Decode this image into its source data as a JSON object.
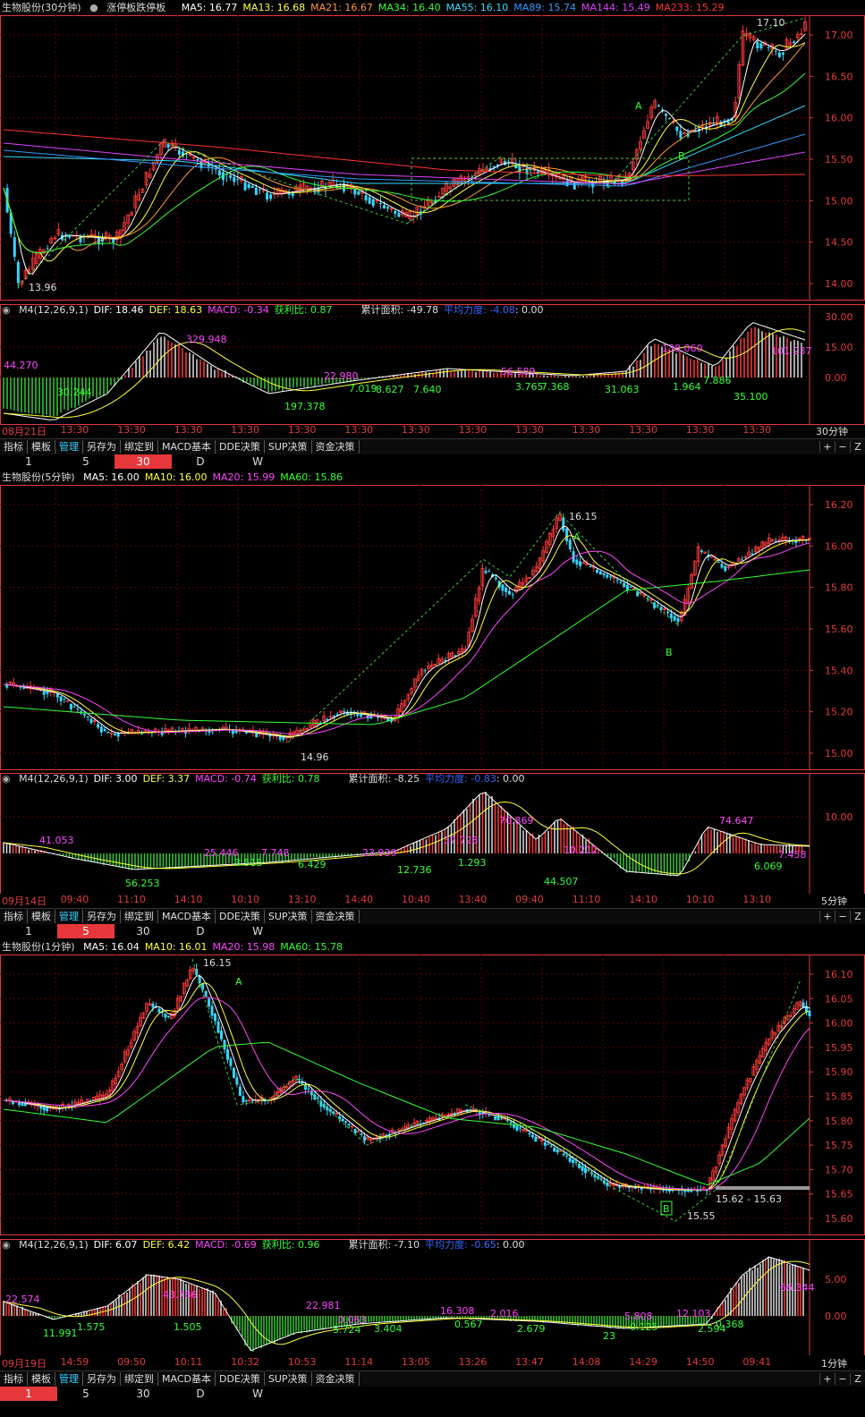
{
  "top": {
    "title": "生物股份(30分钟)",
    "toggle_label": "涨停板跌停板",
    "mas": [
      {
        "t": "MA5: 16.77",
        "c": "#ffffff"
      },
      {
        "t": "MA13: 16.68",
        "c": "#ffff33"
      },
      {
        "t": "MA21: 16.67",
        "c": "#ff9933"
      },
      {
        "t": "MA34: 16.40",
        "c": "#33ff33"
      },
      {
        "t": "MA55: 16.10",
        "c": "#33ddff"
      },
      {
        "t": "MA89: 15.74",
        "c": "#3399ff"
      },
      {
        "t": "MA144: 15.49",
        "c": "#dd44ff"
      },
      {
        "t": "MA233: 15.29",
        "c": "#ff3333"
      }
    ],
    "yaxis": [
      "17.00",
      "16.50",
      "16.00",
      "15.50",
      "15.00",
      "14.50",
      "14.00"
    ],
    "high_label": "17.10",
    "low_label": "13.96",
    "marker_a": "A",
    "marker_b": "B",
    "macd_hdr": {
      "name": "M4(12,26,9,1)",
      "dif": "DIF: 18.46",
      "def": "DEF: 18.63",
      "macd": "MACD: -0.34",
      "ratio": "获利比: 0.87",
      "area": "累计面积: -49.78",
      "force": "平均力度: -4.08",
      "tail": ": 0.00"
    },
    "macd_axis": [
      "30.00",
      "15.00",
      "0.00"
    ],
    "macd_labels": [
      "44.270",
      "30.244",
      "329.948",
      "197.378",
      "22.980",
      "7.019",
      "8.627",
      "7.640",
      "56.589",
      "3.765",
      "7.368",
      "31.063",
      "138.060",
      "1.964",
      "7.886",
      "35.100",
      "101.237"
    ],
    "time_axis": [
      "08月21日",
      "13:30",
      "13:30",
      "13:30",
      "13:30",
      "13:30",
      "13:30",
      "13:30",
      "13:30",
      "13:30",
      "13:30",
      "13:30",
      "13:30",
      "13:30"
    ],
    "period_label": "30分钟"
  },
  "mid": {
    "title": "生物股份(5分钟)",
    "mas": [
      {
        "t": "MA5: 16.00",
        "c": "#ffffff"
      },
      {
        "t": "MA10: 16.00",
        "c": "#ffff33"
      },
      {
        "t": "MA20: 15.99",
        "c": "#ff44ff"
      },
      {
        "t": "MA60: 15.86",
        "c": "#33ff33"
      }
    ],
    "yaxis": [
      "16.20",
      "16.00",
      "15.80",
      "15.60",
      "15.40",
      "15.20",
      "15.00"
    ],
    "high_label": "16.15",
    "low_label": "14.96",
    "marker_a": "A",
    "marker_b": "B",
    "macd_hdr": {
      "name": "M4(12,26,9,1)",
      "dif": "DIF: 3.00",
      "def": "DEF: 3.37",
      "macd": "MACD: -0.74",
      "ratio": "获利比: 0.78",
      "area": "累计面积: -8.25",
      "force": "平均力度: -0.83",
      "tail": ": 0.00"
    },
    "macd_axis": [
      "10.00"
    ],
    "macd_labels": [
      "41.053",
      "56.253",
      "25.446",
      "3.515",
      "7.748",
      "6.429",
      "23.939",
      "12.736",
      "37.728",
      "1.293",
      "70.869",
      "44.507",
      "10.212",
      "74.647",
      "6.069",
      "7.458"
    ],
    "time_axis": [
      "09月14日",
      "09:40",
      "11:10",
      "14:10",
      "10:10",
      "13:10",
      "14:40",
      "10:40",
      "13:40",
      "09:40",
      "11:10",
      "14:10",
      "10:10",
      "13:10"
    ],
    "period_label": "5分钟"
  },
  "bot": {
    "title": "生物股份(1分钟)",
    "mas": [
      {
        "t": "MA5: 16.04",
        "c": "#ffffff"
      },
      {
        "t": "MA10: 16.01",
        "c": "#ffff33"
      },
      {
        "t": "MA20: 15.98",
        "c": "#ff44ff"
      },
      {
        "t": "MA60: 15.78",
        "c": "#33ff33"
      }
    ],
    "yaxis": [
      "16.10",
      "16.05",
      "16.00",
      "15.95",
      "15.90",
      "15.85",
      "15.80",
      "15.75",
      "15.70",
      "15.65",
      "15.60"
    ],
    "high_label": "16.15",
    "low_label": "15.55",
    "range_label": "15.62 - 15.63",
    "marker_a": "A",
    "marker_b": "B",
    "macd_hdr": {
      "name": "M4(12,26,9,1)",
      "dif": "DIF: 6.07",
      "def": "DEF: 6.42",
      "macd": "MACD: -0.69",
      "ratio": "获利比: 0.96",
      "area": "累计面积: -7.10",
      "force": "平均力度: -0.65",
      "tail": ": 0.00"
    },
    "macd_axis": [
      "5.00",
      "0.00"
    ],
    "macd_labels": [
      "22.574",
      "11.991",
      "1.575",
      "43.786",
      "1.505",
      "22.981",
      "5.724",
      "3.404",
      "0.063",
      "16.308",
      "0.567",
      "2.679",
      "2.016",
      "23",
      "0.125",
      "5.808",
      "2.594",
      "12.103",
      "0.368",
      "66.344"
    ],
    "time_axis": [
      "09月19日",
      "14:59",
      "09:50",
      "10:11",
      "10:32",
      "10:53",
      "11:14",
      "13:05",
      "13:26",
      "13:47",
      "14:08",
      "14:29",
      "14:50",
      "09:41"
    ],
    "period_label": "1分钟"
  },
  "toolbar": {
    "items": [
      "指标",
      "模板",
      "管理",
      "另存为",
      "绑定到",
      "MACD基本",
      "DDE决策",
      "SUP决策",
      "资金决策"
    ],
    "active": "管理",
    "right": [
      "+",
      "−",
      "Z"
    ]
  },
  "periods1": {
    "items": [
      "1",
      "5",
      "30",
      "D",
      "W"
    ],
    "active": "30"
  },
  "periods2": {
    "items": [
      "1",
      "5",
      "30",
      "D",
      "W"
    ],
    "active": "5"
  },
  "periods3": {
    "items": [
      "1",
      "5",
      "30",
      "D",
      "W"
    ],
    "active": "1"
  },
  "colors": {
    "up": "#ff3b3b",
    "down": "#34d6ff",
    "grid": "#5a0000",
    "axis": "#e23a3a"
  }
}
